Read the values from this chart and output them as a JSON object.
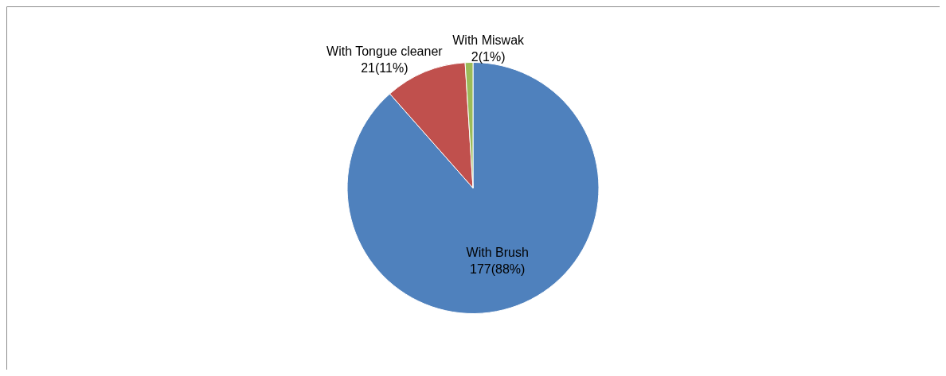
{
  "chart_data": {
    "type": "pie",
    "categories": [
      "With Brush",
      "With Tongue cleaner",
      "With Miswak"
    ],
    "values": [
      177,
      21,
      2
    ],
    "value_labels": [
      "177(88%)",
      "21(11%)",
      "2(1%)"
    ],
    "colors": [
      "#4f81bd",
      "#c0504d",
      "#9bbb59"
    ]
  }
}
